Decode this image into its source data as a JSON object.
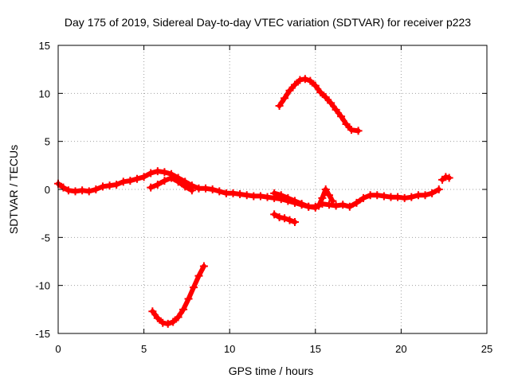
{
  "chart_data": {
    "type": "scatter",
    "title": "Day 175 of 2019, Sidereal Day-to-day VTEC variation (SDTVAR) for receiver p223",
    "xlabel": "GPS time / hours",
    "ylabel": "SDTVAR / TECUs",
    "xlim": [
      0,
      25
    ],
    "ylim": [
      -15,
      15
    ],
    "xticks": [
      0,
      5,
      10,
      15,
      20,
      25
    ],
    "yticks": [
      -15,
      -10,
      -5,
      0,
      5,
      10,
      15
    ],
    "xtick_labels": [
      "0",
      "5",
      "10",
      "15",
      "20",
      "25"
    ],
    "ytick_labels": [
      "-15",
      "-10",
      "-5",
      "0",
      "5",
      "10",
      "15"
    ],
    "grid": true,
    "marker": "plus",
    "color": "#ff0000",
    "series": [
      {
        "name": "main-band",
        "x": [
          0.0,
          0.3,
          0.6,
          1.0,
          1.4,
          1.8,
          2.2,
          2.6,
          3.0,
          3.4,
          3.8,
          4.2,
          4.6,
          5.0,
          5.4,
          5.8,
          6.2,
          6.6,
          7.0,
          7.4,
          7.8,
          8.2,
          8.6,
          9.0,
          9.4,
          9.8,
          10.2,
          10.6,
          11.0,
          11.4,
          11.8,
          12.2,
          12.6,
          13.0,
          13.4,
          13.8,
          14.2,
          14.6,
          15.0,
          15.4,
          15.8,
          16.2,
          16.6,
          17.0,
          17.4,
          17.8,
          18.2,
          18.6,
          19.0,
          19.4,
          19.8,
          20.2,
          20.6,
          21.0,
          21.4,
          21.8,
          22.2
        ],
        "y": [
          0.6,
          0.2,
          -0.1,
          -0.2,
          -0.1,
          -0.2,
          0.0,
          0.3,
          0.4,
          0.5,
          0.8,
          0.9,
          1.1,
          1.3,
          1.7,
          1.9,
          1.8,
          1.6,
          1.2,
          0.8,
          0.4,
          0.1,
          0.1,
          0.0,
          -0.2,
          -0.4,
          -0.4,
          -0.5,
          -0.6,
          -0.7,
          -0.7,
          -0.8,
          -0.9,
          -1.0,
          -1.2,
          -1.4,
          -1.6,
          -1.8,
          -1.8,
          -1.5,
          -1.6,
          -1.7,
          -1.6,
          -1.8,
          -1.4,
          -0.9,
          -0.6,
          -0.6,
          -0.7,
          -0.8,
          -0.8,
          -0.9,
          -0.8,
          -0.6,
          -0.6,
          -0.4,
          0.0
        ]
      },
      {
        "name": "branch-a",
        "x": [
          5.4,
          5.8,
          6.2,
          6.6,
          7.0,
          7.4,
          7.8
        ],
        "y": [
          0.2,
          0.5,
          0.9,
          1.2,
          0.8,
          0.3,
          -0.1
        ]
      },
      {
        "name": "branch-b",
        "x": [
          12.6,
          13.0,
          13.4,
          13.8,
          14.2,
          14.6,
          15.0,
          15.2
        ],
        "y": [
          -0.4,
          -0.6,
          -0.9,
          -1.2,
          -1.5,
          -1.8,
          -1.9,
          -1.7
        ]
      },
      {
        "name": "branch-c",
        "x": [
          15.2,
          15.4,
          15.6,
          15.8,
          16.0
        ],
        "y": [
          -1.7,
          -0.9,
          0.0,
          -0.6,
          -1.2
        ]
      },
      {
        "name": "tail",
        "x": [
          22.4,
          22.6,
          22.8
        ],
        "y": [
          1.0,
          1.3,
          1.2
        ]
      },
      {
        "name": "high-arc",
        "x": [
          12.9,
          13.2,
          13.5,
          13.8,
          14.1,
          14.4,
          14.7,
          15.0,
          15.3,
          15.6,
          15.9,
          16.2,
          16.5,
          16.8,
          17.1,
          17.5
        ],
        "y": [
          8.7,
          9.5,
          10.3,
          10.9,
          11.4,
          11.5,
          11.3,
          10.8,
          10.1,
          9.6,
          9.0,
          8.3,
          7.6,
          6.8,
          6.2,
          6.1
        ]
      },
      {
        "name": "low-curve",
        "x": [
          5.5,
          5.8,
          6.1,
          6.4,
          6.7,
          7.0,
          7.3,
          7.6,
          7.9,
          8.2,
          8.5
        ],
        "y": [
          -12.7,
          -13.4,
          -13.9,
          -14.0,
          -13.8,
          -13.3,
          -12.5,
          -11.4,
          -10.2,
          -9.0,
          -8.0
        ]
      },
      {
        "name": "small-segment",
        "x": [
          12.6,
          12.9,
          13.2,
          13.5,
          13.8
        ],
        "y": [
          -2.6,
          -2.9,
          -3.0,
          -3.2,
          -3.4
        ]
      }
    ]
  }
}
